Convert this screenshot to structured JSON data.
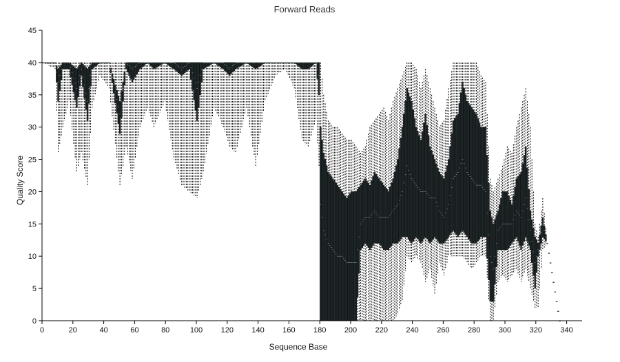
{
  "chart_data": {
    "type": "box",
    "title": "Forward Reads",
    "xlabel": "Sequence Base",
    "ylabel": "Quality Score",
    "xlim": [
      0,
      350
    ],
    "ylim": [
      0,
      45
    ],
    "x_ticks": [
      0,
      20,
      40,
      60,
      80,
      100,
      120,
      140,
      160,
      180,
      200,
      220,
      240,
      260,
      280,
      300,
      320,
      340
    ],
    "y_ticks": [
      0,
      5,
      10,
      15,
      20,
      25,
      30,
      35,
      40,
      45
    ],
    "grid": false,
    "profile": [
      {
        "x": 1,
        "q1": 40,
        "median": 40,
        "q3": 40,
        "wmin": 40,
        "wmax": 40
      },
      {
        "x": 9,
        "q1": 40,
        "median": 40,
        "q3": 40,
        "wmin": 39,
        "wmax": 40
      },
      {
        "x": 11,
        "q1": 34,
        "median": 37,
        "q3": 39,
        "wmin": 26,
        "wmax": 40
      },
      {
        "x": 14,
        "q1": 39,
        "median": 40,
        "q3": 40,
        "wmin": 30,
        "wmax": 40
      },
      {
        "x": 18,
        "q1": 39,
        "median": 40,
        "q3": 40,
        "wmin": 34,
        "wmax": 40
      },
      {
        "x": 23,
        "q1": 33,
        "median": 36,
        "q3": 39,
        "wmin": 23,
        "wmax": 40
      },
      {
        "x": 26,
        "q1": 38,
        "median": 39,
        "q3": 40,
        "wmin": 26,
        "wmax": 40
      },
      {
        "x": 30,
        "q1": 31,
        "median": 34,
        "q3": 39,
        "wmin": 21,
        "wmax": 40
      },
      {
        "x": 33,
        "q1": 39,
        "median": 40,
        "q3": 40,
        "wmin": 33,
        "wmax": 40
      },
      {
        "x": 38,
        "q1": 40,
        "median": 40,
        "q3": 40,
        "wmin": 38,
        "wmax": 40
      },
      {
        "x": 44,
        "q1": 40,
        "median": 40,
        "q3": 40,
        "wmin": 36,
        "wmax": 40
      },
      {
        "x": 51,
        "q1": 29,
        "median": 32,
        "q3": 34,
        "wmin": 21,
        "wmax": 40
      },
      {
        "x": 55,
        "q1": 39,
        "median": 40,
        "q3": 40,
        "wmin": 27,
        "wmax": 40
      },
      {
        "x": 59,
        "q1": 37,
        "median": 39,
        "q3": 40,
        "wmin": 22,
        "wmax": 40
      },
      {
        "x": 64,
        "q1": 39,
        "median": 40,
        "q3": 40,
        "wmin": 30,
        "wmax": 40
      },
      {
        "x": 69,
        "q1": 40,
        "median": 40,
        "q3": 40,
        "wmin": 33,
        "wmax": 40
      },
      {
        "x": 73,
        "q1": 39,
        "median": 40,
        "q3": 40,
        "wmin": 30,
        "wmax": 40
      },
      {
        "x": 80,
        "q1": 40,
        "median": 40,
        "q3": 40,
        "wmin": 34,
        "wmax": 40
      },
      {
        "x": 86,
        "q1": 39,
        "median": 40,
        "q3": 40,
        "wmin": 25,
        "wmax": 40
      },
      {
        "x": 91,
        "q1": 38,
        "median": 39,
        "q3": 40,
        "wmin": 21,
        "wmax": 40
      },
      {
        "x": 96,
        "q1": 39,
        "median": 40,
        "q3": 40,
        "wmin": 20,
        "wmax": 40
      },
      {
        "x": 101,
        "q1": 31,
        "median": 36,
        "q3": 40,
        "wmin": 19,
        "wmax": 40
      },
      {
        "x": 105,
        "q1": 39,
        "median": 40,
        "q3": 40,
        "wmin": 23,
        "wmax": 40
      },
      {
        "x": 112,
        "q1": 40,
        "median": 40,
        "q3": 40,
        "wmin": 33,
        "wmax": 40
      },
      {
        "x": 118,
        "q1": 39,
        "median": 40,
        "q3": 40,
        "wmin": 30,
        "wmax": 40
      },
      {
        "x": 122,
        "q1": 38,
        "median": 39,
        "q3": 40,
        "wmin": 27,
        "wmax": 40
      },
      {
        "x": 126,
        "q1": 39,
        "median": 40,
        "q3": 40,
        "wmin": 26,
        "wmax": 40
      },
      {
        "x": 133,
        "q1": 40,
        "median": 40,
        "q3": 40,
        "wmin": 33,
        "wmax": 40
      },
      {
        "x": 139,
        "q1": 39,
        "median": 40,
        "q3": 40,
        "wmin": 24,
        "wmax": 40
      },
      {
        "x": 145,
        "q1": 40,
        "median": 40,
        "q3": 40,
        "wmin": 34,
        "wmax": 40
      },
      {
        "x": 152,
        "q1": 40,
        "median": 40,
        "q3": 40,
        "wmin": 38,
        "wmax": 40
      },
      {
        "x": 158,
        "q1": 40,
        "median": 40,
        "q3": 40,
        "wmin": 39,
        "wmax": 40
      },
      {
        "x": 164,
        "q1": 40,
        "median": 40,
        "q3": 40,
        "wmin": 36,
        "wmax": 40
      },
      {
        "x": 169,
        "q1": 39,
        "median": 40,
        "q3": 40,
        "wmin": 28,
        "wmax": 40
      },
      {
        "x": 173,
        "q1": 39,
        "median": 40,
        "q3": 40,
        "wmin": 27,
        "wmax": 40
      },
      {
        "x": 178,
        "q1": 40,
        "median": 40,
        "q3": 40,
        "wmin": 31,
        "wmax": 40
      },
      {
        "x": 180,
        "q1": 35,
        "median": 38,
        "q3": 40,
        "wmin": 24,
        "wmax": 40
      },
      {
        "x": 181,
        "q1": 0,
        "median": 18,
        "q3": 30,
        "wmin": 0,
        "wmax": 40
      },
      {
        "x": 183,
        "q1": 0,
        "median": 14,
        "q3": 26,
        "wmin": 0,
        "wmax": 35
      },
      {
        "x": 186,
        "q1": 0,
        "median": 12,
        "q3": 23,
        "wmin": 0,
        "wmax": 31
      },
      {
        "x": 189,
        "q1": 0,
        "median": 11,
        "q3": 22,
        "wmin": 0,
        "wmax": 30
      },
      {
        "x": 192,
        "q1": 0,
        "median": 10,
        "q3": 21,
        "wmin": 0,
        "wmax": 30
      },
      {
        "x": 195,
        "q1": 0,
        "median": 10,
        "q3": 20,
        "wmin": 0,
        "wmax": 29
      },
      {
        "x": 198,
        "q1": 0,
        "median": 9,
        "q3": 19,
        "wmin": 0,
        "wmax": 28
      },
      {
        "x": 201,
        "q1": 0,
        "median": 9,
        "q3": 20,
        "wmin": 0,
        "wmax": 28
      },
      {
        "x": 204,
        "q1": 0,
        "median": 9,
        "q3": 20,
        "wmin": 0,
        "wmax": 27
      },
      {
        "x": 207,
        "q1": 11,
        "median": 15,
        "q3": 21,
        "wmin": 0,
        "wmax": 26
      },
      {
        "x": 210,
        "q1": 12,
        "median": 16,
        "q3": 22,
        "wmin": 0,
        "wmax": 27
      },
      {
        "x": 213,
        "q1": 11,
        "median": 16,
        "q3": 21,
        "wmin": 0,
        "wmax": 30
      },
      {
        "x": 216,
        "q1": 12,
        "median": 17,
        "q3": 23,
        "wmin": 0,
        "wmax": 31
      },
      {
        "x": 219,
        "q1": 12,
        "median": 16,
        "q3": 22,
        "wmin": 0,
        "wmax": 32
      },
      {
        "x": 222,
        "q1": 11,
        "median": 16,
        "q3": 21,
        "wmin": 0,
        "wmax": 33
      },
      {
        "x": 225,
        "q1": 11,
        "median": 16,
        "q3": 20,
        "wmin": 0,
        "wmax": 31
      },
      {
        "x": 228,
        "q1": 12,
        "median": 17,
        "q3": 22,
        "wmin": 0,
        "wmax": 34
      },
      {
        "x": 231,
        "q1": 12,
        "median": 18,
        "q3": 25,
        "wmin": 1,
        "wmax": 36
      },
      {
        "x": 234,
        "q1": 13,
        "median": 20,
        "q3": 30,
        "wmin": 3,
        "wmax": 38
      },
      {
        "x": 237,
        "q1": 13,
        "median": 24,
        "q3": 36,
        "wmin": 10,
        "wmax": 40
      },
      {
        "x": 240,
        "q1": 12,
        "median": 22,
        "q3": 34,
        "wmin": 9,
        "wmax": 40
      },
      {
        "x": 243,
        "q1": 13,
        "median": 21,
        "q3": 30,
        "wmin": 10,
        "wmax": 39
      },
      {
        "x": 246,
        "q1": 12,
        "median": 20,
        "q3": 28,
        "wmin": 9,
        "wmax": 36
      },
      {
        "x": 249,
        "q1": 13,
        "median": 20,
        "q3": 32,
        "wmin": 6,
        "wmax": 39
      },
      {
        "x": 252,
        "q1": 12,
        "median": 19,
        "q3": 27,
        "wmin": 8,
        "wmax": 36
      },
      {
        "x": 255,
        "q1": 13,
        "median": 19,
        "q3": 25,
        "wmin": 4,
        "wmax": 33
      },
      {
        "x": 258,
        "q1": 12,
        "median": 17,
        "q3": 23,
        "wmin": 9,
        "wmax": 30
      },
      {
        "x": 261,
        "q1": 12,
        "median": 16,
        "q3": 22,
        "wmin": 7,
        "wmax": 31
      },
      {
        "x": 264,
        "q1": 13,
        "median": 18,
        "q3": 25,
        "wmin": 10,
        "wmax": 36
      },
      {
        "x": 267,
        "q1": 14,
        "median": 22,
        "q3": 31,
        "wmin": 10,
        "wmax": 40
      },
      {
        "x": 270,
        "q1": 13,
        "median": 23,
        "q3": 32,
        "wmin": 10,
        "wmax": 40
      },
      {
        "x": 273,
        "q1": 14,
        "median": 25,
        "q3": 37,
        "wmin": 10,
        "wmax": 40
      },
      {
        "x": 276,
        "q1": 13,
        "median": 23,
        "q3": 34,
        "wmin": 9,
        "wmax": 40
      },
      {
        "x": 279,
        "q1": 12,
        "median": 22,
        "q3": 33,
        "wmin": 8,
        "wmax": 40
      },
      {
        "x": 282,
        "q1": 12,
        "median": 21,
        "q3": 32,
        "wmin": 9,
        "wmax": 40
      },
      {
        "x": 285,
        "q1": 13,
        "median": 21,
        "q3": 30,
        "wmin": 10,
        "wmax": 38
      },
      {
        "x": 288,
        "q1": 13,
        "median": 20,
        "q3": 30,
        "wmin": 10,
        "wmax": 37
      },
      {
        "x": 291,
        "q1": 3,
        "median": 10,
        "q3": 17,
        "wmin": 0,
        "wmax": 22
      },
      {
        "x": 293,
        "q1": 3,
        "median": 8,
        "q3": 15,
        "wmin": 0,
        "wmax": 20
      },
      {
        "x": 296,
        "q1": 11,
        "median": 14,
        "q3": 17,
        "wmin": 6,
        "wmax": 22
      },
      {
        "x": 299,
        "q1": 11,
        "median": 15,
        "q3": 20,
        "wmin": 7,
        "wmax": 24
      },
      {
        "x": 302,
        "q1": 11,
        "median": 15,
        "q3": 20,
        "wmin": 6,
        "wmax": 27
      },
      {
        "x": 305,
        "q1": 12,
        "median": 15,
        "q3": 18,
        "wmin": 7,
        "wmax": 26
      },
      {
        "x": 308,
        "q1": 13,
        "median": 17,
        "q3": 22,
        "wmin": 8,
        "wmax": 30
      },
      {
        "x": 311,
        "q1": 11,
        "median": 16,
        "q3": 23,
        "wmin": 6,
        "wmax": 33
      },
      {
        "x": 314,
        "q1": 13,
        "median": 19,
        "q3": 27,
        "wmin": 8,
        "wmax": 36
      },
      {
        "x": 317,
        "q1": 11,
        "median": 14,
        "q3": 17,
        "wmin": 5,
        "wmax": 30
      },
      {
        "x": 320,
        "q1": 5,
        "median": 9,
        "q3": 13,
        "wmin": 2,
        "wmax": 15
      },
      {
        "x": 322,
        "q1": 10,
        "median": 11,
        "q3": 12,
        "wmin": 2,
        "wmax": 13
      },
      {
        "x": 325,
        "q1": 13,
        "median": 15,
        "q3": 16,
        "wmin": 11,
        "wmax": 19
      },
      {
        "x": 328,
        "q1": 12,
        "median": 12,
        "q3": 12,
        "wmin": 12,
        "wmax": 12
      },
      {
        "x": 336,
        "q1": 0,
        "median": 0,
        "q3": 0,
        "wmin": 0,
        "wmax": 0
      }
    ]
  }
}
